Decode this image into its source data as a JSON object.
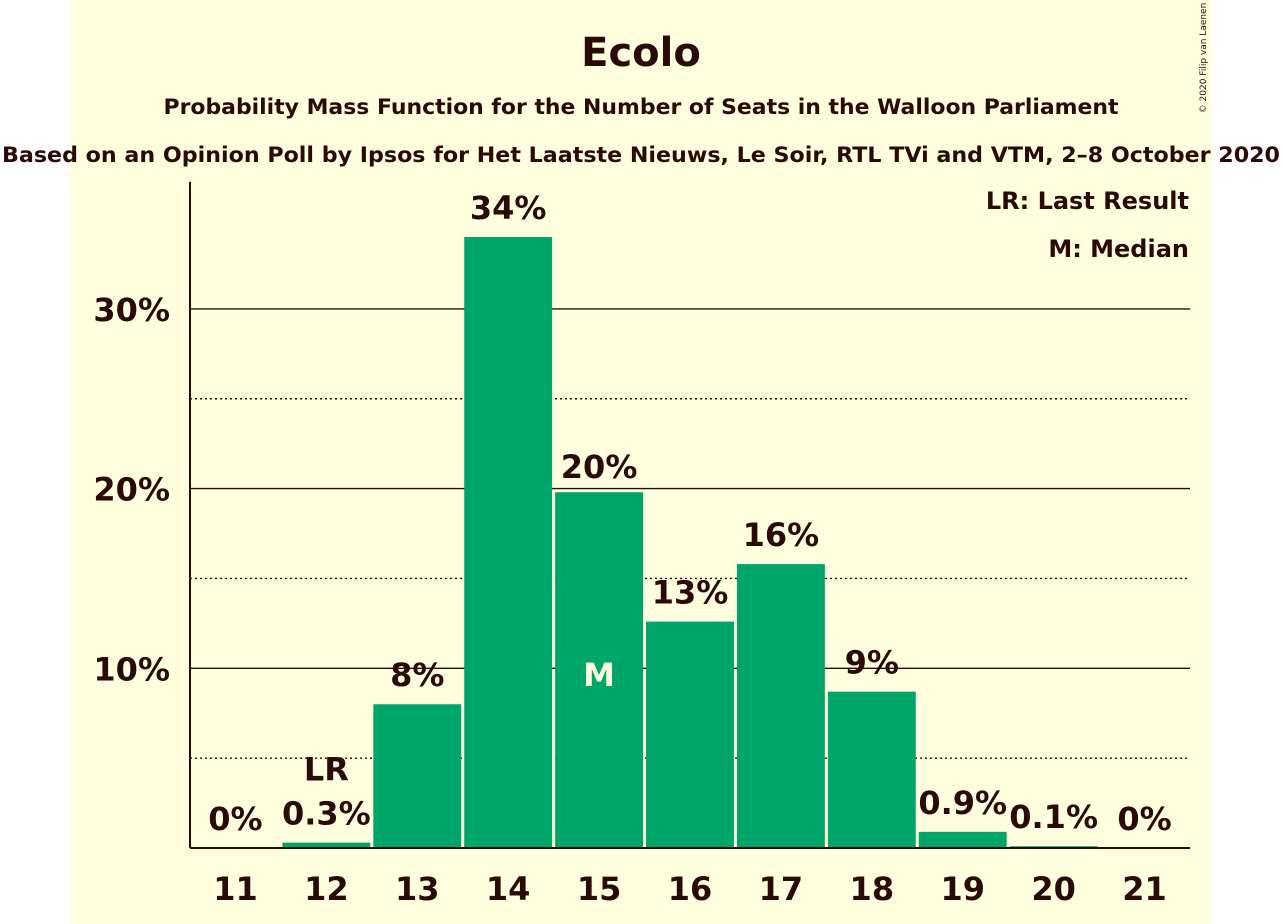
{
  "chart_data": {
    "type": "bar",
    "title": "Ecolo",
    "subtitle": "Probability Mass Function for the Number of Seats in the Walloon Parliament",
    "subtitle2": "Based on an Opinion Poll by Ipsos for Het Laatste Nieuws, Le Soir, RTL TVi and VTM, 2–8 October 2020",
    "copyright": "© 2020 Filip van Laenen",
    "categories": [
      "11",
      "12",
      "13",
      "14",
      "15",
      "16",
      "17",
      "18",
      "19",
      "20",
      "21"
    ],
    "values": [
      0,
      0.3,
      8,
      34,
      19.8,
      12.6,
      15.8,
      8.7,
      0.9,
      0.1,
      0
    ],
    "data_labels": [
      "0%",
      "0.3%",
      "8%",
      "34%",
      "20%",
      "13%",
      "16%",
      "9%",
      "0.9%",
      "0.1%",
      "0%"
    ],
    "ylim": [
      0,
      37
    ],
    "yticks": [
      10,
      20,
      30
    ],
    "ytick_labels": [
      "10%",
      "20%",
      "30%"
    ],
    "minor_gridlines": [
      5,
      15,
      25
    ],
    "last_result_category": "12",
    "last_result_marker": "LR",
    "median_category": "15",
    "median_marker": "M",
    "legend": [
      "LR: Last Result",
      "M: Median"
    ],
    "legend_position": "top-right",
    "colors": {
      "background": "#ffffe0",
      "bar": "#00a56a",
      "text": "#2b0a06",
      "median_text": "#ffffe0"
    }
  }
}
